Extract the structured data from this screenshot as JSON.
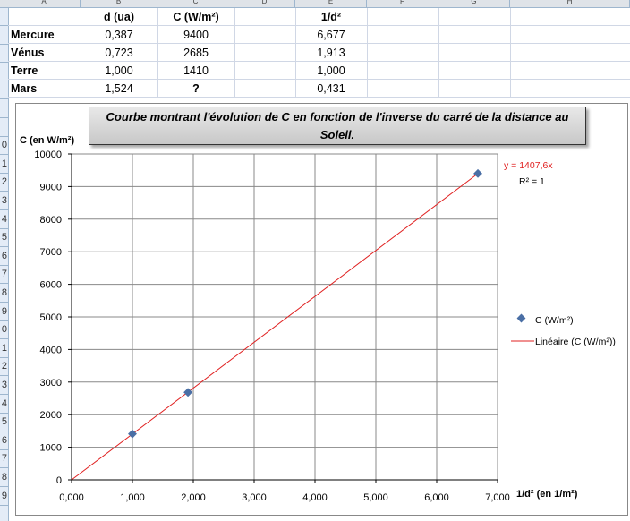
{
  "columns": [
    "A",
    "B",
    "C",
    "D",
    "E",
    "F",
    "G",
    "H"
  ],
  "row_numbers": [
    "",
    "",
    "",
    "",
    "",
    "",
    "",
    "0",
    "1",
    "2",
    "3",
    "4",
    "5",
    "6",
    "7",
    "8",
    "9",
    "0",
    "1",
    "2",
    "3",
    "4",
    "5",
    "6",
    "7",
    "8",
    "9"
  ],
  "headers": {
    "d": "d (ua)",
    "c": "C (W/m²)",
    "inv": "1/d²"
  },
  "rows": [
    {
      "name": "Mercure",
      "d": "0,387",
      "c": "9400",
      "inv": "6,677"
    },
    {
      "name": "Vénus",
      "d": "0,723",
      "c": "2685",
      "inv": "1,913"
    },
    {
      "name": "Terre",
      "d": "1,000",
      "c": "1410",
      "inv": "1,000"
    },
    {
      "name": "Mars",
      "d": "1,524",
      "c": "?",
      "inv": "0,431"
    }
  ],
  "chart_data": {
    "type": "scatter",
    "title": "Courbe montrant l'évolution de C en fonction de l'inverse du carré de la distance au Soleil.",
    "xlabel": "1/d² (en 1/m²)",
    "ylabel": "C (en W/m²)",
    "xlim": [
      0,
      7
    ],
    "ylim": [
      0,
      10000
    ],
    "x_ticks": [
      "0,000",
      "1,000",
      "2,000",
      "3,000",
      "4,000",
      "5,000",
      "6,000",
      "7,000"
    ],
    "y_ticks": [
      "0",
      "1000",
      "2000",
      "3000",
      "4000",
      "5000",
      "6000",
      "7000",
      "8000",
      "9000",
      "10000"
    ],
    "grid": true,
    "legend_position": "right",
    "series": [
      {
        "name": "C (W/m²)",
        "x": [
          6.677,
          1.913,
          1.0
        ],
        "y": [
          9400,
          2685,
          1410
        ],
        "color": "#4a6fa5",
        "marker": "diamond"
      }
    ],
    "trendline": {
      "name": "Linéaire (C (W/m²))",
      "slope": 1407.6,
      "color": "#e02020",
      "equation": "y = 1407,6x",
      "r2": "R² = 1"
    }
  }
}
